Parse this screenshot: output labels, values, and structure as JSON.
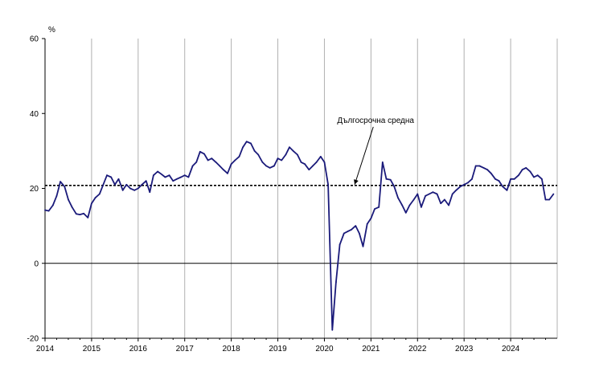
{
  "chart_data": {
    "type": "line",
    "title": "",
    "xlabel": "",
    "ylabel": "",
    "unit_label": "%",
    "annotation": "Дългосрочна средна",
    "xlim": [
      2014,
      2025
    ],
    "ylim": [
      -20,
      60
    ],
    "y_ticks": [
      -20,
      0,
      20,
      40,
      60
    ],
    "x_ticks": [
      "2014",
      "2015",
      "2016",
      "2017",
      "2018",
      "2019",
      "2020",
      "2021",
      "2022",
      "2023",
      "2024"
    ],
    "grid": "vertical",
    "long_term_average": 20.8,
    "colors": {
      "series": "#1a1a7a",
      "average": "#000000",
      "grid": "#b0b0b0",
      "axis": "#000000"
    },
    "series": [
      {
        "x": [
          2014.0,
          2014.08,
          2014.17,
          2014.25,
          2014.33,
          2014.42,
          2014.5,
          2014.58,
          2014.67,
          2014.75,
          2014.83,
          2014.92,
          2015.0,
          2015.08,
          2015.17,
          2015.25,
          2015.33,
          2015.42,
          2015.5,
          2015.58,
          2015.67,
          2015.75,
          2015.83,
          2015.92,
          2016.0,
          2016.08,
          2016.17,
          2016.25,
          2016.33,
          2016.42,
          2016.5,
          2016.58,
          2016.67,
          2016.75,
          2016.83,
          2016.92,
          2017.0,
          2017.08,
          2017.17,
          2017.25,
          2017.33,
          2017.42,
          2017.5,
          2017.58,
          2017.67,
          2017.75,
          2017.83,
          2017.92,
          2018.0,
          2018.08,
          2018.17,
          2018.25,
          2018.33,
          2018.42,
          2018.5,
          2018.58,
          2018.67,
          2018.75,
          2018.83,
          2018.92,
          2019.0,
          2019.08,
          2019.17,
          2019.25,
          2019.33,
          2019.42,
          2019.5,
          2019.58,
          2019.67,
          2019.75,
          2019.83,
          2019.92,
          2020.0,
          2020.08,
          2020.17,
          2020.25,
          2020.33,
          2020.42,
          2020.5,
          2020.58,
          2020.67,
          2020.75,
          2020.83,
          2020.92,
          2021.0,
          2021.08,
          2021.17,
          2021.25,
          2021.33,
          2021.42,
          2021.5,
          2021.58,
          2021.67,
          2021.75,
          2021.83,
          2021.92,
          2022.0,
          2022.08,
          2022.17,
          2022.25,
          2022.33,
          2022.42,
          2022.5,
          2022.58,
          2022.67,
          2022.75,
          2022.83,
          2022.92,
          2023.0,
          2023.08,
          2023.17,
          2023.25,
          2023.33,
          2023.42,
          2023.5,
          2023.58,
          2023.67,
          2023.75,
          2023.83,
          2023.92,
          2024.0,
          2024.08,
          2024.17,
          2024.25,
          2024.33,
          2024.42,
          2024.5,
          2024.58,
          2024.67,
          2024.75,
          2024.83,
          2024.92
        ],
        "y": [
          14.2,
          14.0,
          15.5,
          18.0,
          21.8,
          20.5,
          17.0,
          15.0,
          13.2,
          13.0,
          13.3,
          12.2,
          16.0,
          17.5,
          18.5,
          21.0,
          23.5,
          23.0,
          21.0,
          22.5,
          19.5,
          21.0,
          20.0,
          19.5,
          20.0,
          21.0,
          22.0,
          19.0,
          23.5,
          24.5,
          23.8,
          23.0,
          23.5,
          22.0,
          22.5,
          23.0,
          23.5,
          23.0,
          26.0,
          27.0,
          29.8,
          29.2,
          27.5,
          28.0,
          27.0,
          26.0,
          25.0,
          24.0,
          26.5,
          27.5,
          28.5,
          31.0,
          32.5,
          32.0,
          30.0,
          29.0,
          27.0,
          26.0,
          25.5,
          26.0,
          28.0,
          27.5,
          29.0,
          31.0,
          30.0,
          29.0,
          27.0,
          26.5,
          25.0,
          26.0,
          27.0,
          28.5,
          27.0,
          21.0,
          -17.8,
          -5.0,
          5.0,
          8.0,
          8.5,
          9.0,
          10.0,
          8.0,
          4.5,
          10.5,
          12.0,
          14.5,
          15.0,
          27.0,
          22.5,
          22.3,
          20.5,
          17.5,
          15.5,
          13.5,
          15.5,
          17.0,
          18.5,
          15.0,
          18.0,
          18.5,
          19.0,
          18.5,
          16.0,
          17.0,
          15.5,
          18.5,
          19.5,
          20.5,
          21.0,
          21.5,
          22.5,
          26.0,
          26.0,
          25.5,
          25.0,
          24.0,
          22.5,
          22.0,
          20.5,
          19.5,
          22.5,
          22.5,
          23.5,
          25.0,
          25.5,
          24.5,
          23.0,
          23.5,
          22.5,
          17.0,
          17.0,
          18.5
        ]
      }
    ]
  }
}
